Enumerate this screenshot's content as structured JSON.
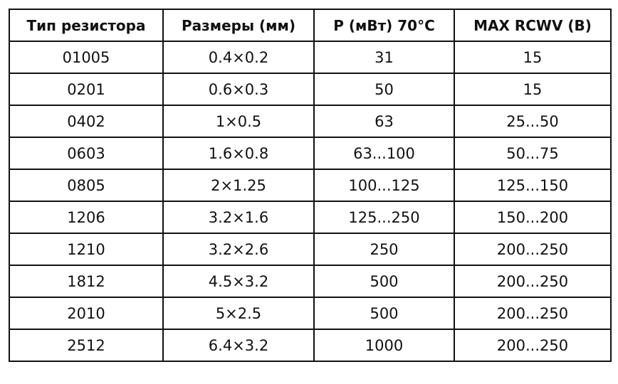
{
  "table": {
    "header": [
      "Тип резистора",
      "Размеры (мм)",
      "P (мВт) 70°C",
      "MAX RCWV (В)"
    ],
    "rows": [
      [
        "01005",
        "0.4×0.2",
        "31",
        "15"
      ],
      [
        "0201",
        "0.6×0.3",
        "50",
        "15"
      ],
      [
        "0402",
        "1×0.5",
        "63",
        "25...50"
      ],
      [
        "0603",
        "1.6×0.8",
        "63...100",
        "50...75"
      ],
      [
        "0805",
        "2×1.25",
        "100...125",
        "125...150"
      ],
      [
        "1206",
        "3.2×1.6",
        "125...250",
        "150...200"
      ],
      [
        "1210",
        "3.2×2.6",
        "250",
        "200...250"
      ],
      [
        "1812",
        "4.5×3.2",
        "500",
        "200...250"
      ],
      [
        "2010",
        "5×2.5",
        "500",
        "200...250"
      ],
      [
        "2512",
        "6.4×3.2",
        "1000",
        "200...250"
      ]
    ]
  }
}
